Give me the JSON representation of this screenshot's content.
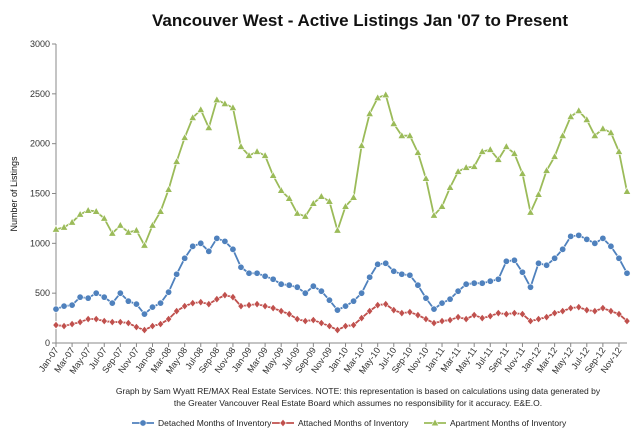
{
  "chart_data": {
    "type": "line",
    "title": "Vancouver West - Active Listings Jan '07 to Present",
    "xlabel": "",
    "ylabel": "Number of Listings",
    "ylim": [
      0,
      3000
    ],
    "yticks": [
      0,
      500,
      1000,
      1500,
      2000,
      2500,
      3000
    ],
    "x": [
      "Jan-07",
      "Feb-07",
      "Mar-07",
      "Apr-07",
      "May-07",
      "Jun-07",
      "Jul-07",
      "Aug-07",
      "Sep-07",
      "Oct-07",
      "Nov-07",
      "Dec-07",
      "Jan-08",
      "Feb-08",
      "Mar-08",
      "Apr-08",
      "May-08",
      "Jun-08",
      "Jul-08",
      "Aug-08",
      "Sep-08",
      "Oct-08",
      "Nov-08",
      "Dec-08",
      "Jan-09",
      "Feb-09",
      "Mar-09",
      "Apr-09",
      "May-09",
      "Jun-09",
      "Jul-09",
      "Aug-09",
      "Sep-09",
      "Oct-09",
      "Nov-09",
      "Dec-09",
      "Jan-10",
      "Feb-10",
      "Mar-10",
      "Apr-10",
      "May-10",
      "Jun-10",
      "Jul-10",
      "Aug-10",
      "Sep-10",
      "Oct-10",
      "Nov-10",
      "Dec-10",
      "Jan-11",
      "Feb-11",
      "Mar-11",
      "Apr-11",
      "May-11",
      "Jun-11",
      "Jul-11",
      "Aug-11",
      "Sep-11",
      "Oct-11",
      "Nov-11",
      "Dec-11",
      "Jan-12",
      "Feb-12",
      "Mar-12",
      "Apr-12",
      "May-12",
      "Jun-12",
      "Jul-12",
      "Aug-12",
      "Sep-12",
      "Oct-12",
      "Nov-12",
      "Dec-12"
    ],
    "x_tick_labels": [
      "Jan-07",
      "Mar-07",
      "May-07",
      "Jul-07",
      "Sep-07",
      "Nov-07",
      "Jan-08",
      "Mar-08",
      "May-08",
      "Jul-08",
      "Sep-08",
      "Nov-08",
      "Jan-09",
      "Mar-09",
      "May-09",
      "Jul-09",
      "Sep-09",
      "Nov-09",
      "Jan-10",
      "Mar-10",
      "May-10",
      "Jul-10",
      "Sep-10",
      "Nov-10",
      "Jan-11",
      "Mar-11",
      "May-11",
      "Jul-11",
      "Sep-11",
      "Nov-11",
      "Jan-12",
      "Mar-12",
      "May-12",
      "Jul-12",
      "Sep-12",
      "Nov-12"
    ],
    "series": [
      {
        "name": "Detached Months of Inventory",
        "color": "#4f81bd",
        "marker": "circle",
        "values": [
          340,
          370,
          380,
          460,
          450,
          500,
          460,
          400,
          500,
          420,
          390,
          290,
          360,
          400,
          510,
          690,
          850,
          970,
          1000,
          920,
          1050,
          1020,
          940,
          760,
          700,
          700,
          670,
          640,
          590,
          580,
          560,
          500,
          570,
          520,
          430,
          330,
          370,
          420,
          500,
          660,
          790,
          800,
          720,
          690,
          680,
          580,
          450,
          340,
          400,
          440,
          520,
          590,
          600,
          600,
          620,
          640,
          820,
          830,
          710,
          560,
          800,
          780,
          850,
          940,
          1070,
          1080,
          1040,
          1000,
          1050,
          970,
          850,
          700
        ]
      },
      {
        "name": "Attached Months of Inventory",
        "color": "#c0504d",
        "marker": "diamond",
        "values": [
          180,
          170,
          190,
          210,
          240,
          240,
          220,
          210,
          210,
          200,
          160,
          130,
          170,
          190,
          240,
          320,
          370,
          400,
          410,
          390,
          440,
          480,
          460,
          370,
          380,
          390,
          370,
          350,
          320,
          290,
          240,
          220,
          230,
          200,
          170,
          130,
          170,
          180,
          250,
          320,
          380,
          390,
          330,
          300,
          310,
          280,
          240,
          200,
          220,
          230,
          260,
          240,
          280,
          250,
          270,
          300,
          290,
          300,
          290,
          220,
          240,
          260,
          300,
          320,
          350,
          360,
          330,
          320,
          350,
          320,
          290,
          220
        ]
      },
      {
        "name": "Apartment Months of Inventory",
        "color": "#9bbb59",
        "marker": "triangle",
        "values": [
          1140,
          1160,
          1210,
          1290,
          1330,
          1320,
          1250,
          1100,
          1180,
          1110,
          1130,
          980,
          1180,
          1320,
          1540,
          1820,
          2060,
          2260,
          2340,
          2160,
          2440,
          2400,
          2360,
          1970,
          1880,
          1920,
          1880,
          1680,
          1530,
          1450,
          1300,
          1270,
          1400,
          1470,
          1420,
          1130,
          1370,
          1460,
          1980,
          2300,
          2460,
          2490,
          2200,
          2080,
          2080,
          1910,
          1650,
          1280,
          1370,
          1560,
          1720,
          1760,
          1770,
          1920,
          1940,
          1840,
          1970,
          1900,
          1700,
          1310,
          1490,
          1730,
          1870,
          2080,
          2270,
          2330,
          2240,
          2080,
          2150,
          2110,
          1920,
          1520
        ]
      }
    ],
    "grid": false,
    "legend_position": "bottom",
    "annotations": [
      "Graph by Sam Wyatt RE/MAX Real Estate Services.   NOTE: this representation is based on calculations using data generated by",
      "the Greater Vancouver Real Estate Board which assumes no responsibility for it accuracy. E&E.O."
    ]
  }
}
